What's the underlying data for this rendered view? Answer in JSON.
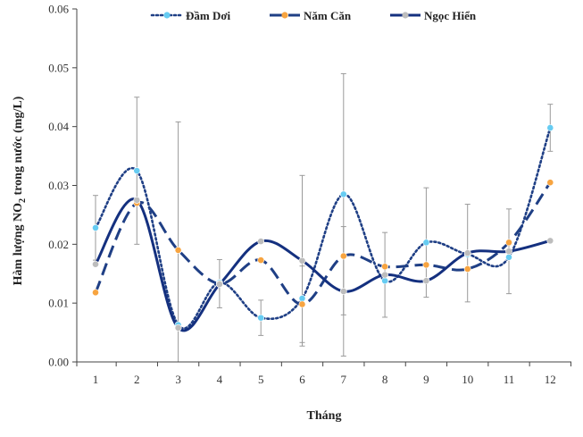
{
  "chart_data": {
    "type": "line",
    "xlabel": "Tháng",
    "ylabel": {
      "pre": "Hàm lượng  NO",
      "sub": "2",
      "post": " trong nước (mg/L)"
    },
    "x": [
      1,
      2,
      3,
      4,
      5,
      6,
      7,
      8,
      9,
      10,
      11,
      12
    ],
    "x_tick_labels": [
      "1",
      "2",
      "3",
      "4",
      "5",
      "6",
      "7",
      "8",
      "9",
      "10",
      "11",
      "12"
    ],
    "ylim": [
      0,
      0.06
    ],
    "y_ticks": [
      0,
      0.01,
      0.02,
      0.03,
      0.04,
      0.05,
      0.06
    ],
    "y_tick_labels": [
      "0.00",
      "0.01",
      "0.02",
      "0.03",
      "0.04",
      "0.05",
      "0.06"
    ],
    "grid": false,
    "legend_position": "top",
    "series": [
      {
        "name": "Đầm Dơi",
        "style": "dotted",
        "line_color": "#1F3F85",
        "marker_color": "#66CCF2",
        "values": [
          0.0228,
          0.0325,
          0.0063,
          0.0135,
          0.0075,
          0.0108,
          0.0285,
          0.0138,
          0.0203,
          0.0183,
          0.0178,
          0.0398
        ],
        "error": [
          0.0055,
          0.0125,
          0.0345,
          0.0,
          0.003,
          0.0,
          0.0205,
          0.0,
          0.0093,
          0.0,
          0.0,
          0.004
        ]
      },
      {
        "name": "Năm Căn",
        "style": "dashed",
        "line_color": "#1F3F85",
        "marker_color": "#F7A440",
        "values": [
          0.0118,
          0.027,
          0.019,
          0.0133,
          0.0173,
          0.0098,
          0.018,
          0.0162,
          0.0165,
          0.0158,
          0.0203,
          0.0305
        ],
        "error": [
          0.0,
          0.0,
          0.0,
          0.0041,
          0.0,
          0.0065,
          0.0,
          0.0,
          0.0,
          0.0,
          0.0,
          0.0
        ]
      },
      {
        "name": "Ngọc Hiển",
        "style": "solid",
        "line_color": "#14307F",
        "marker_color": "#BDBDBD",
        "values": [
          0.0166,
          0.0275,
          0.0058,
          0.0132,
          0.0205,
          0.0172,
          0.012,
          0.0148,
          0.0138,
          0.0185,
          0.0188,
          0.0206
        ],
        "error": [
          0.0,
          0.0,
          0.0,
          0.0,
          0.0,
          0.0145,
          0.011,
          0.0072,
          0.0,
          0.0083,
          0.0072,
          0.0
        ]
      }
    ]
  }
}
